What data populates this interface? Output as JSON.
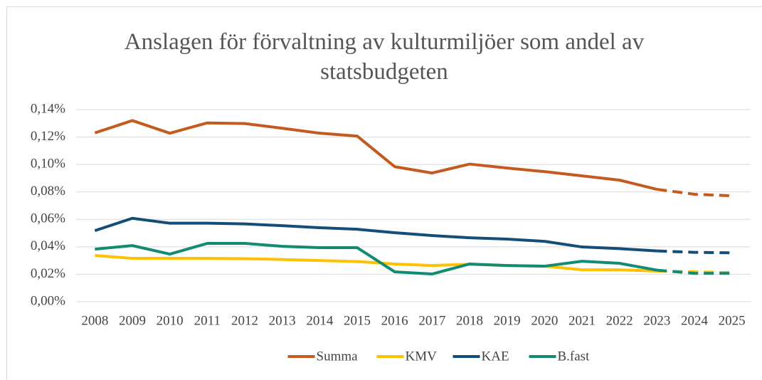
{
  "chart_data": {
    "type": "line",
    "title": "Anslagen för förvaltning av kulturmiljöer som andel av statsbudgeten",
    "categories": [
      "2008",
      "2009",
      "2010",
      "2011",
      "2012",
      "2013",
      "2014",
      "2015",
      "2016",
      "2017",
      "2018",
      "2019",
      "2020",
      "2021",
      "2022",
      "2023",
      "2024",
      "2025"
    ],
    "series": [
      {
        "name": "Summa",
        "color": "#c55a1e",
        "values": [
          0.123,
          0.132,
          0.1228,
          0.1303,
          0.1298,
          0.1264,
          0.1228,
          0.1207,
          0.0984,
          0.0938,
          0.1003,
          0.0974,
          0.0948,
          0.0917,
          0.0886,
          0.0819,
          0.0783,
          0.0772
        ]
      },
      {
        "name": "KMV",
        "color": "#ffc000",
        "values": [
          0.0337,
          0.0316,
          0.0316,
          0.0316,
          0.0314,
          0.0308,
          0.03,
          0.0293,
          0.0275,
          0.0264,
          0.0273,
          0.0264,
          0.0259,
          0.0233,
          0.0233,
          0.0223,
          0.0218,
          0.0212
        ]
      },
      {
        "name": "KAE",
        "color": "#124e78",
        "values": [
          0.0518,
          0.0608,
          0.0572,
          0.0572,
          0.0567,
          0.0554,
          0.0539,
          0.0528,
          0.0503,
          0.0482,
          0.0466,
          0.0456,
          0.044,
          0.0399,
          0.0387,
          0.037,
          0.036,
          0.0356
        ]
      },
      {
        "name": "B.fast",
        "color": "#138a72",
        "values": [
          0.0383,
          0.0409,
          0.0347,
          0.0425,
          0.0425,
          0.0404,
          0.0394,
          0.0394,
          0.0218,
          0.0202,
          0.0275,
          0.0264,
          0.0259,
          0.0295,
          0.028,
          0.023,
          0.0207,
          0.0207
        ]
      }
    ],
    "dashed_from": "2023",
    "ylim": [
      0,
      0.14
    ],
    "yticks": [
      {
        "value": 0,
        "label": "0,00%"
      },
      {
        "value": 0.02,
        "label": "0,02%"
      },
      {
        "value": 0.04,
        "label": "0,04%"
      },
      {
        "value": 0.06,
        "label": "0,06%"
      },
      {
        "value": 0.08,
        "label": "0,08%"
      },
      {
        "value": 0.1,
        "label": "0,10%"
      },
      {
        "value": 0.12,
        "label": "0,12%"
      },
      {
        "value": 0.14,
        "label": "0,14%"
      }
    ],
    "grid": true,
    "legend": "bottom"
  }
}
